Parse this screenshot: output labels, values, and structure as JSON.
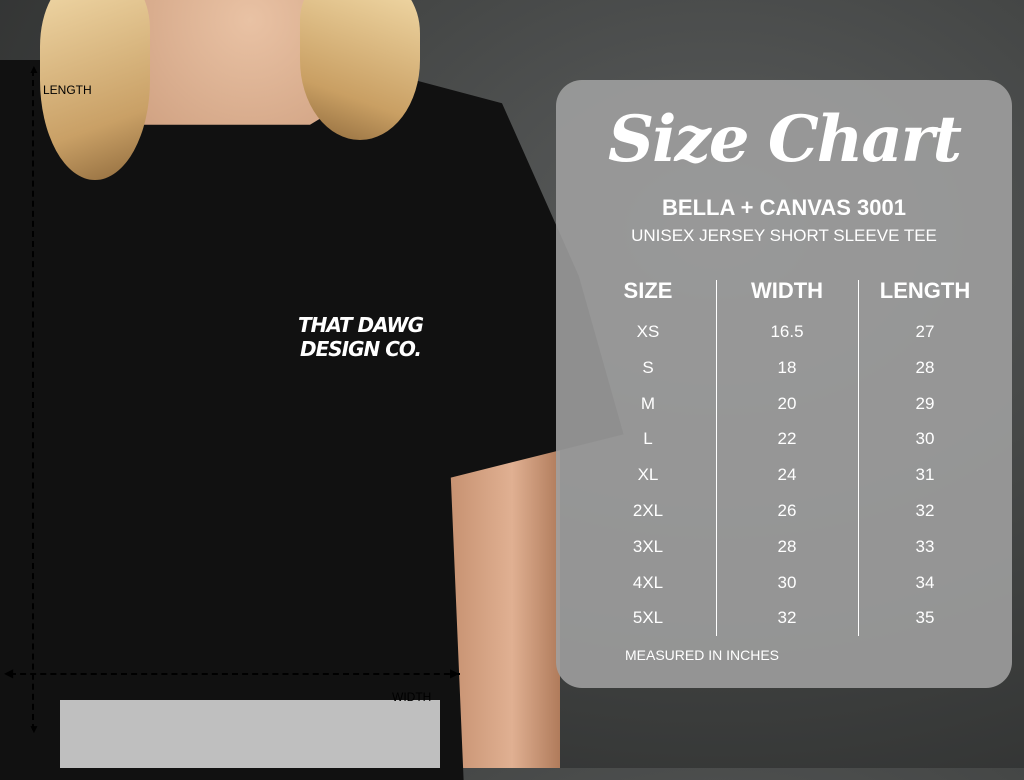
{
  "photo": {
    "logo_lines": [
      "THAT DAWG",
      "DESIGN CO."
    ],
    "length_label": "LENGTH",
    "width_label": "WIDTH"
  },
  "chart": {
    "title": "Size Chart",
    "brand": "BELLA + CANVAS 3001",
    "product": "UNISEX JERSEY SHORT SLEEVE TEE",
    "headers": [
      "SIZE",
      "WIDTH",
      "LENGTH"
    ],
    "sizes": [
      "XS",
      "S",
      "M",
      "L",
      "XL",
      "2XL",
      "3XL",
      "4XL",
      "5XL"
    ],
    "widths": [
      "16.5",
      "18",
      "20",
      "22",
      "24",
      "26",
      "28",
      "30",
      "32"
    ],
    "lengths": [
      "27",
      "28",
      "29",
      "30",
      "31",
      "32",
      "33",
      "34",
      "35"
    ],
    "footnote": "MEASURED IN INCHES"
  }
}
